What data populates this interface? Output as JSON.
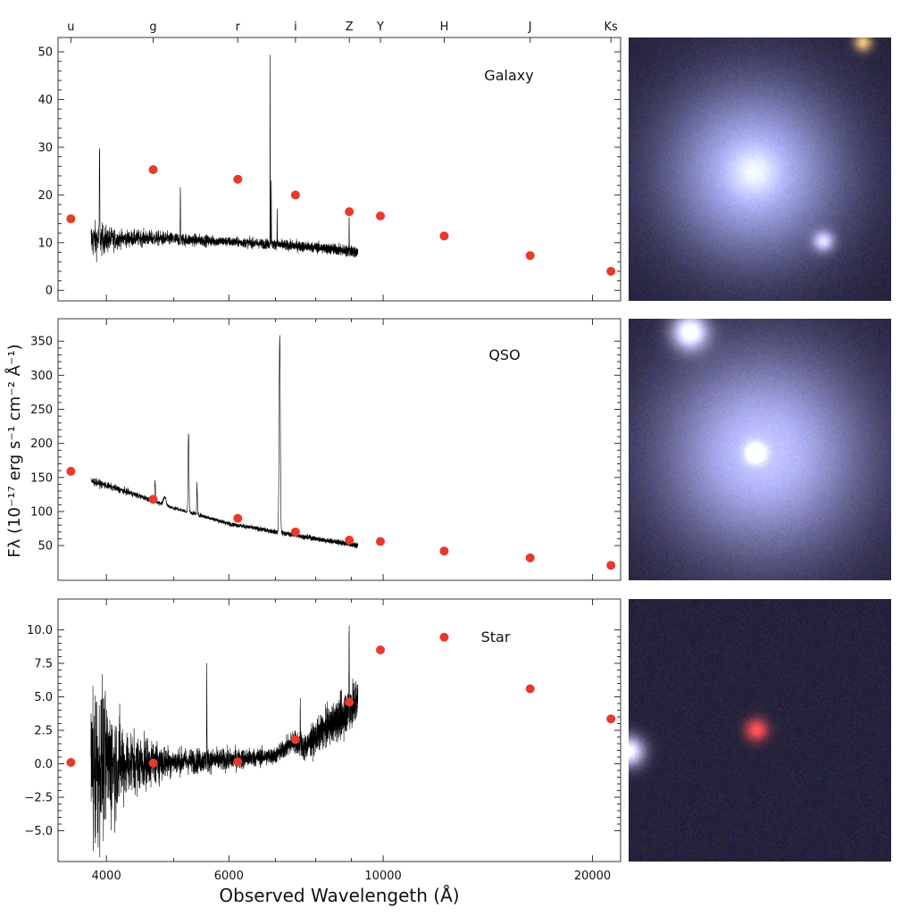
{
  "chart_data": [
    {
      "type": "line",
      "title": "Galaxy",
      "ylim": [
        -2.2,
        53
      ],
      "yticks": [
        0,
        10,
        20,
        30,
        40,
        50
      ],
      "ytick_labels": [
        "0",
        "10",
        "20",
        "30",
        "40",
        "50"
      ],
      "photometry": [
        15,
        25.3,
        23.3,
        20,
        16.5,
        15.6,
        11.4,
        7.3,
        4
      ],
      "spectrum": {
        "range": [
          3800,
          9200
        ],
        "continuum": [
          [
            3800,
            10.5
          ],
          [
            4500,
            11
          ],
          [
            6000,
            10.2
          ],
          [
            8000,
            9
          ],
          [
            9200,
            8
          ]
        ],
        "noise": [
          [
            3800,
            4
          ],
          [
            4200,
            1.8
          ],
          [
            6000,
            1.0
          ],
          [
            9200,
            1.2
          ]
        ],
        "lines": [
          [
            3910,
            20,
            3
          ],
          [
            5110,
            11,
            3
          ],
          [
            6880,
            40,
            3
          ],
          [
            6905,
            14,
            3
          ],
          [
            7040,
            8,
            3
          ],
          [
            8935,
            7,
            4
          ]
        ]
      },
      "image": "galaxy"
    },
    {
      "type": "line",
      "title": "QSO",
      "ylim": [
        -1,
        383
      ],
      "yticks": [
        50,
        100,
        150,
        200,
        250,
        300,
        350
      ],
      "ytick_labels": [
        "50",
        "100",
        "150",
        "200",
        "250",
        "300",
        "350"
      ],
      "photometry": [
        159,
        118,
        90,
        70,
        58,
        56,
        42,
        32,
        21
      ],
      "spectrum": {
        "range": [
          3800,
          9200
        ],
        "continuum": [
          [
            3800,
            145
          ],
          [
            4300,
            128
          ],
          [
            5000,
            105
          ],
          [
            6000,
            82
          ],
          [
            7000,
            70
          ],
          [
            8000,
            60
          ],
          [
            9200,
            50
          ]
        ],
        "noise": [
          [
            3800,
            6
          ],
          [
            5000,
            3
          ],
          [
            9200,
            4
          ]
        ],
        "lines": [
          [
            4700,
            30,
            6
          ],
          [
            5250,
            115,
            8
          ],
          [
            5400,
            45,
            6
          ],
          [
            7100,
            290,
            14
          ],
          [
            4850,
            12,
            20
          ]
        ]
      },
      "image": "qso"
    },
    {
      "type": "line",
      "title": "Star",
      "ylim": [
        -7.3,
        12.3
      ],
      "yticks": [
        -5,
        -2.5,
        0,
        2.5,
        5,
        7.5,
        10
      ],
      "ytick_labels": [
        "−5.0",
        "−2.5",
        "0.0",
        "2.5",
        "5.0",
        "7.5",
        "10.0"
      ],
      "photometry": [
        0.1,
        0.05,
        0.15,
        1.8,
        4.6,
        8.5,
        9.45,
        5.6,
        3.35
      ],
      "spectrum": {
        "range": [
          3800,
          9200
        ],
        "continuum": [
          [
            3800,
            0
          ],
          [
            6000,
            0.3
          ],
          [
            7000,
            0.6
          ],
          [
            7450,
            1.7
          ],
          [
            7700,
            1.2
          ],
          [
            8200,
            2.5
          ],
          [
            8700,
            3.5
          ],
          [
            9200,
            4.8
          ]
        ],
        "noise": [
          [
            3800,
            7
          ],
          [
            4300,
            2.5
          ],
          [
            5000,
            1.0
          ],
          [
            7000,
            0.6
          ],
          [
            9200,
            1.8
          ]
        ],
        "lines": [
          [
            5577,
            7,
            3
          ],
          [
            8935,
            6,
            5
          ],
          [
            7600,
            3.5,
            4
          ]
        ]
      },
      "image": "star"
    }
  ],
  "bands": {
    "labels": [
      "u",
      "g",
      "r",
      "i",
      "Z",
      "Y",
      "H",
      "J",
      "Ks"
    ],
    "wavelengths": [
      3556,
      4670,
      6180,
      7480,
      8940,
      9910,
      12240,
      16270,
      21260
    ]
  },
  "xaxis": {
    "label": "Observed Wavelength (Å)",
    "label_text": "Observed Wavelengeth (Å)",
    "xlim": [
      3408,
      21950
    ],
    "scale": "log",
    "ticks": [
      4000,
      6000,
      10000,
      20000
    ],
    "tick_labels": [
      "4000",
      "6000",
      "10000",
      "20000"
    ],
    "minor": [
      5000,
      7000,
      8000,
      9000
    ]
  },
  "yaxis": {
    "label": "Fλ (10⁻¹⁷ erg s⁻¹ cm⁻² Å⁻¹)"
  },
  "colors": {
    "points": "#e8392b",
    "spectrum": "#000000"
  }
}
